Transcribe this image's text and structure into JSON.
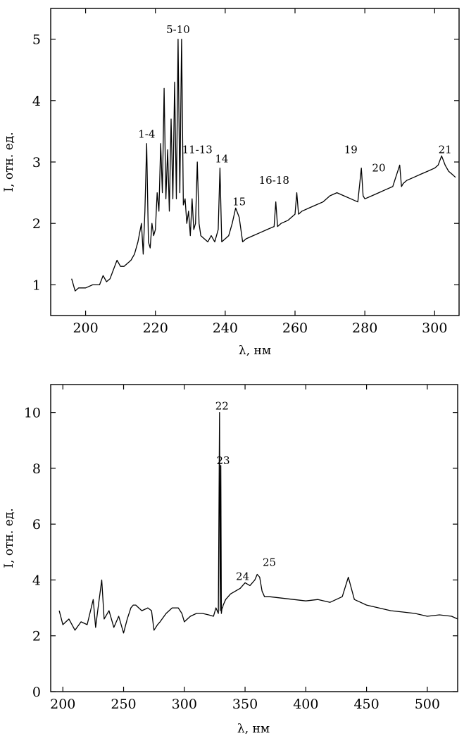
{
  "chart_data": [
    {
      "type": "line",
      "title": "",
      "xlabel": "λ, нм",
      "ylabel": "I, отн. ед.",
      "xlim": [
        190,
        307
      ],
      "ylim": [
        0.5,
        5.5
      ],
      "x_ticks": [
        200,
        220,
        240,
        260,
        280,
        300
      ],
      "y_ticks": [
        1,
        2,
        3,
        4,
        5
      ],
      "grid": false,
      "series": [
        {
          "x": [
            196,
            197,
            198,
            200,
            202,
            204,
            205,
            206,
            207,
            208,
            209,
            210,
            211,
            212,
            213,
            214,
            215,
            216,
            216.5,
            217,
            217.5,
            218,
            218.5,
            219,
            219.5,
            220,
            220.5,
            221,
            221.5,
            222,
            222.5,
            223,
            223.5,
            224,
            224.5,
            225,
            225.5,
            226,
            226.5,
            227,
            227.5,
            228,
            228.5,
            229,
            229.5,
            230,
            230.5,
            231,
            231.5,
            232,
            232.5,
            233,
            234,
            235,
            236,
            237,
            238,
            238.5,
            239,
            240,
            241,
            242,
            243,
            244,
            245,
            246,
            248,
            250,
            252,
            254,
            254.5,
            255,
            256,
            258,
            260,
            260.5,
            261,
            262,
            264,
            266,
            268,
            270,
            272,
            274,
            276,
            278,
            279,
            279.5,
            280,
            282,
            284,
            286,
            288,
            290,
            290.5,
            291,
            292,
            294,
            296,
            298,
            300,
            301,
            302,
            303,
            304,
            305,
            306
          ],
          "y": [
            1.1,
            0.9,
            0.95,
            0.95,
            1.0,
            1.0,
            1.15,
            1.05,
            1.1,
            1.25,
            1.4,
            1.3,
            1.3,
            1.35,
            1.4,
            1.5,
            1.7,
            2.0,
            1.5,
            2.2,
            3.3,
            1.7,
            1.6,
            2.0,
            1.8,
            1.9,
            2.5,
            2.2,
            3.3,
            2.5,
            4.2,
            2.4,
            3.2,
            2.2,
            3.7,
            2.4,
            4.3,
            2.4,
            5.0,
            2.5,
            5.0,
            2.3,
            2.4,
            2.0,
            2.2,
            1.8,
            2.4,
            1.9,
            2.0,
            3.0,
            2.0,
            1.8,
            1.75,
            1.7,
            1.8,
            1.7,
            1.9,
            2.9,
            1.7,
            1.75,
            1.8,
            2.0,
            2.25,
            2.1,
            1.7,
            1.75,
            1.8,
            1.85,
            1.9,
            1.95,
            2.35,
            1.95,
            2.0,
            2.05,
            2.15,
            2.5,
            2.15,
            2.2,
            2.25,
            2.3,
            2.35,
            2.45,
            2.5,
            2.45,
            2.4,
            2.35,
            2.9,
            2.45,
            2.4,
            2.45,
            2.5,
            2.55,
            2.6,
            2.95,
            2.6,
            2.65,
            2.7,
            2.75,
            2.8,
            2.85,
            2.9,
            2.95,
            3.1,
            2.95,
            2.85,
            2.8,
            2.75
          ]
        }
      ],
      "annotations": [
        {
          "text": "1-4",
          "x": 217.5,
          "y": 3.35
        },
        {
          "text": "5-10",
          "x": 226.5,
          "y": 5.05
        },
        {
          "text": "11-13",
          "x": 232,
          "y": 3.1
        },
        {
          "text": "14",
          "x": 239,
          "y": 2.95
        },
        {
          "text": "15",
          "x": 244,
          "y": 2.25
        },
        {
          "text": "16-18",
          "x": 254,
          "y": 2.6
        },
        {
          "text": "19",
          "x": 276,
          "y": 3.1
        },
        {
          "text": "20",
          "x": 284,
          "y": 2.8
        },
        {
          "text": "21",
          "x": 303,
          "y": 3.1
        }
      ]
    },
    {
      "type": "line",
      "title": "",
      "xlabel": "λ, нм",
      "ylabel": "I, отн. ед.",
      "xlim": [
        190,
        525
      ],
      "ylim": [
        0,
        11
      ],
      "x_ticks": [
        200,
        250,
        300,
        350,
        400,
        450,
        500
      ],
      "y_ticks": [
        0,
        2,
        4,
        6,
        8,
        10
      ],
      "grid": false,
      "series": [
        {
          "x": [
            197,
            200,
            205,
            210,
            215,
            220,
            225,
            227,
            229,
            232,
            234,
            238,
            242,
            246,
            250,
            253,
            256,
            258,
            260,
            265,
            270,
            273,
            275,
            278,
            280,
            285,
            290,
            295,
            298,
            300,
            305,
            310,
            315,
            320,
            324,
            326,
            328,
            329,
            329.5,
            330,
            330.5,
            331,
            331.5,
            332,
            334,
            338,
            342,
            346,
            350,
            354,
            358,
            360,
            362,
            364,
            366,
            370,
            380,
            390,
            400,
            410,
            420,
            430,
            435,
            440,
            450,
            460,
            470,
            480,
            490,
            500,
            510,
            520,
            525
          ],
          "y": [
            2.9,
            2.4,
            2.6,
            2.2,
            2.5,
            2.4,
            3.3,
            2.3,
            3.0,
            4.0,
            2.6,
            2.9,
            2.3,
            2.7,
            2.1,
            2.6,
            3.0,
            3.1,
            3.1,
            2.9,
            3.0,
            2.9,
            2.2,
            2.4,
            2.5,
            2.8,
            3.0,
            3.0,
            2.8,
            2.5,
            2.7,
            2.8,
            2.8,
            2.75,
            2.7,
            3.0,
            2.8,
            10.0,
            2.9,
            8.1,
            2.8,
            3.0,
            3.0,
            3.1,
            3.3,
            3.5,
            3.6,
            3.7,
            3.9,
            3.8,
            4.0,
            4.2,
            4.1,
            3.6,
            3.4,
            3.4,
            3.35,
            3.3,
            3.25,
            3.3,
            3.2,
            3.4,
            4.1,
            3.3,
            3.1,
            3.0,
            2.9,
            2.85,
            2.8,
            2.7,
            2.75,
            2.7,
            2.6
          ]
        }
      ],
      "annotations": [
        {
          "text": "22",
          "x": 331,
          "y": 10.0
        },
        {
          "text": "23",
          "x": 332,
          "y": 8.05
        },
        {
          "text": "24",
          "x": 348,
          "y": 3.9
        },
        {
          "text": "25",
          "x": 370,
          "y": 4.4
        }
      ]
    }
  ]
}
